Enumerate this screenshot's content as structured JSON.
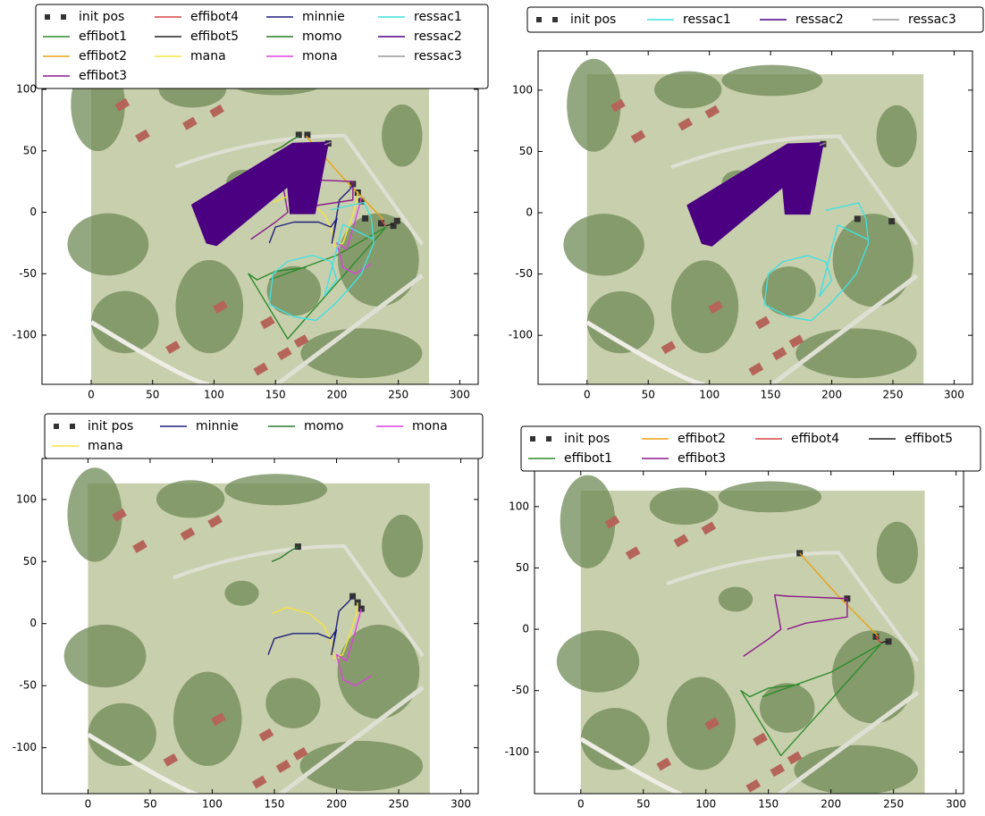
{
  "chart_data": [
    {
      "type": "line",
      "xlim": [
        -40,
        315
      ],
      "ylim": [
        -140,
        132
      ],
      "xticks": [
        0,
        50,
        100,
        150,
        200,
        250,
        300
      ],
      "yticks": [
        -100,
        -50,
        0,
        50,
        100
      ],
      "series": [
        {
          "name": "init pos",
          "kind": "markers",
          "color": "#333333",
          "x": [
            169,
            176,
            193,
            213,
            217,
            220,
            223,
            236,
            246,
            249
          ],
          "y": [
            63,
            63,
            56,
            23,
            16,
            9,
            -5,
            -9,
            -11,
            -7
          ]
        },
        {
          "name": "effibot1",
          "kind": "line",
          "color": "#2e8b2e",
          "x": [
            175,
            150,
            135,
            128,
            160,
            240,
            200,
            145
          ],
          "y": [
            -45,
            -48,
            -55,
            -50,
            -103,
            -12,
            -35,
            -55
          ]
        },
        {
          "name": "effibot2",
          "kind": "line",
          "color": "#e8a317",
          "x": [
            175,
            205,
            238
          ],
          "y": [
            62,
            28,
            -6
          ]
        },
        {
          "name": "effibot3",
          "kind": "line",
          "color": "#8b1a8b",
          "x": [
            130,
            150,
            160,
            155,
            165,
            213,
            213,
            200,
            180,
            165
          ],
          "y": [
            -22,
            -8,
            0,
            28,
            27,
            25,
            10,
            8,
            5,
            0
          ]
        },
        {
          "name": "effibot4",
          "kind": "line",
          "color": "#d64545",
          "x": [
            236,
            238,
            240
          ],
          "y": [
            -6,
            -9,
            -11
          ]
        },
        {
          "name": "effibot5",
          "kind": "line",
          "color": "#222222",
          "x": [
            240,
            244,
            246
          ],
          "y": [
            -11,
            -10,
            -10
          ]
        },
        {
          "name": "mana",
          "kind": "line",
          "color": "#f5e342",
          "x": [
            148,
            160,
            178,
            190,
            196,
            198,
            205,
            212,
            216,
            217
          ],
          "y": [
            8,
            13,
            8,
            -2,
            -15,
            -28,
            -25,
            -5,
            8,
            17
          ]
        },
        {
          "name": "minnie",
          "kind": "line",
          "color": "#1f1f7a",
          "x": [
            145,
            150,
            165,
            185,
            195,
            200,
            196,
            202,
            210,
            213
          ],
          "y": [
            -25,
            -12,
            -8,
            -8,
            -12,
            -5,
            -25,
            10,
            18,
            22
          ]
        },
        {
          "name": "momo",
          "kind": "line",
          "color": "#2a7a2a",
          "x": [
            148,
            155,
            162,
            169
          ],
          "y": [
            50,
            53,
            58,
            62
          ]
        },
        {
          "name": "mona",
          "kind": "line",
          "color": "#e040e0",
          "x": [
            220,
            214,
            208,
            200,
            205,
            215,
            228
          ],
          "y": [
            12,
            -10,
            -30,
            -25,
            -45,
            -50,
            -42
          ]
        },
        {
          "name": "ressac1",
          "kind": "line",
          "color": "#40e0e0",
          "x": [
            195,
            222,
            228,
            230,
            220,
            210,
            198,
            183,
            165,
            145,
            148,
            160,
            180,
            195,
            200,
            190,
            205,
            230
          ],
          "y": [
            2,
            8,
            -5,
            -25,
            -50,
            -62,
            -75,
            -88,
            -85,
            -75,
            -50,
            -40,
            -35,
            -40,
            -55,
            -68,
            -10,
            -22
          ]
        },
        {
          "name": "ressac2",
          "kind": "area",
          "color": "#4b0082",
          "x": [
            82,
            164,
            193,
            182,
            162,
            160,
            102,
            94
          ],
          "y": [
            6,
            56,
            57,
            -1,
            -1,
            21,
            -27,
            -25
          ]
        },
        {
          "name": "ressac3",
          "kind": "line",
          "color": "#999999",
          "x": [
            190,
            195
          ],
          "y": [
            55,
            57
          ]
        }
      ]
    },
    {
      "type": "line",
      "xlim": [
        -40,
        315
      ],
      "ylim": [
        -140,
        132
      ],
      "xticks": [
        0,
        50,
        100,
        150,
        200,
        250,
        300
      ],
      "yticks": [
        -100,
        -50,
        0,
        50,
        100
      ],
      "series": [
        {
          "name": "init pos",
          "kind": "markers",
          "color": "#333333",
          "x": [
            193,
            221,
            249
          ],
          "y": [
            56,
            -5,
            -7
          ]
        },
        {
          "name": "ressac1",
          "kind": "line",
          "color": "#40e0e0",
          "x": [
            195,
            222,
            228,
            230,
            220,
            210,
            198,
            183,
            165,
            145,
            148,
            160,
            180,
            195,
            200,
            190,
            205,
            230
          ],
          "y": [
            2,
            8,
            -5,
            -25,
            -50,
            -62,
            -75,
            -88,
            -85,
            -75,
            -50,
            -40,
            -35,
            -40,
            -55,
            -68,
            -10,
            -22
          ]
        },
        {
          "name": "ressac2",
          "kind": "area",
          "color": "#4b0082",
          "x": [
            82,
            164,
            193,
            182,
            162,
            160,
            102,
            94
          ],
          "y": [
            6,
            56,
            57,
            -1,
            -1,
            21,
            -27,
            -25
          ]
        },
        {
          "name": "ressac3",
          "kind": "line",
          "color": "#999999",
          "x": [
            190,
            195
          ],
          "y": [
            55,
            57
          ]
        }
      ]
    },
    {
      "type": "line",
      "xlim": [
        -37,
        314
      ],
      "ylim": [
        -137,
        133
      ],
      "xticks": [
        0,
        50,
        100,
        150,
        200,
        250,
        300
      ],
      "yticks": [
        -100,
        -50,
        0,
        50,
        100
      ],
      "series": [
        {
          "name": "init pos",
          "kind": "markers",
          "color": "#333333",
          "x": [
            169,
            213,
            217,
            220
          ],
          "y": [
            62,
            22,
            17,
            12
          ]
        },
        {
          "name": "mana",
          "kind": "line",
          "color": "#f5e342",
          "x": [
            148,
            160,
            178,
            190,
            196,
            198,
            205,
            212,
            216,
            217
          ],
          "y": [
            8,
            13,
            8,
            -2,
            -15,
            -28,
            -25,
            -5,
            8,
            17
          ]
        },
        {
          "name": "minnie",
          "kind": "line",
          "color": "#1f1f7a",
          "x": [
            145,
            150,
            165,
            185,
            195,
            200,
            196,
            202,
            210,
            213
          ],
          "y": [
            -25,
            -12,
            -8,
            -8,
            -12,
            -5,
            -25,
            10,
            18,
            22
          ]
        },
        {
          "name": "momo",
          "kind": "line",
          "color": "#2a7a2a",
          "x": [
            148,
            155,
            162,
            169
          ],
          "y": [
            50,
            53,
            58,
            62
          ]
        },
        {
          "name": "mona",
          "kind": "line",
          "color": "#e040e0",
          "x": [
            220,
            214,
            208,
            200,
            205,
            215,
            228
          ],
          "y": [
            12,
            -10,
            -30,
            -25,
            -45,
            -50,
            -42
          ]
        }
      ]
    },
    {
      "type": "line",
      "xlim": [
        -37,
        306
      ],
      "ylim": [
        -134,
        129
      ],
      "xticks": [
        0,
        50,
        100,
        150,
        200,
        250,
        300
      ],
      "yticks": [
        -100,
        -50,
        0,
        50,
        100
      ],
      "series": [
        {
          "name": "init pos",
          "kind": "markers",
          "color": "#333333",
          "x": [
            175,
            213,
            236,
            246
          ],
          "y": [
            62,
            25,
            -6,
            -10
          ]
        },
        {
          "name": "effibot1",
          "kind": "line",
          "color": "#2e8b2e",
          "x": [
            175,
            150,
            135,
            128,
            160,
            240,
            200,
            145
          ],
          "y": [
            -45,
            -48,
            -55,
            -50,
            -103,
            -12,
            -35,
            -55
          ]
        },
        {
          "name": "effibot2",
          "kind": "line",
          "color": "#e8a317",
          "x": [
            175,
            205,
            238
          ],
          "y": [
            62,
            28,
            -6
          ]
        },
        {
          "name": "effibot3",
          "kind": "line",
          "color": "#8b1a8b",
          "x": [
            130,
            150,
            160,
            155,
            165,
            213,
            213,
            200,
            180,
            165
          ],
          "y": [
            -22,
            -8,
            0,
            28,
            27,
            25,
            10,
            8,
            5,
            0
          ]
        },
        {
          "name": "effibot4",
          "kind": "line",
          "color": "#d64545",
          "x": [
            236,
            238,
            240
          ],
          "y": [
            -6,
            -9,
            -11
          ]
        },
        {
          "name": "effibot5",
          "kind": "line",
          "color": "#222222",
          "x": [
            240,
            244,
            246
          ],
          "y": [
            -11,
            -10,
            -10
          ]
        }
      ]
    }
  ]
}
